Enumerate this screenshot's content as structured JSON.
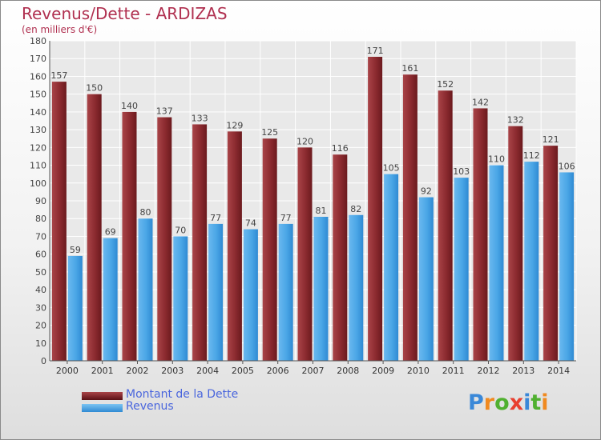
{
  "title": "Revenus/Dette - ARDIZAS",
  "subtitle": "(en milliers d'€)",
  "chart_data": {
    "type": "bar",
    "categories": [
      "2000",
      "2001",
      "2002",
      "2003",
      "2004",
      "2005",
      "2006",
      "2007",
      "2008",
      "2009",
      "2010",
      "2011",
      "2012",
      "2013",
      "2014"
    ],
    "series": [
      {
        "name": "Montant de la Dette",
        "values": [
          157,
          150,
          140,
          137,
          133,
          129,
          125,
          120,
          116,
          171,
          161,
          152,
          142,
          132,
          121
        ]
      },
      {
        "name": "Revenus",
        "values": [
          59,
          69,
          80,
          70,
          77,
          74,
          77,
          81,
          82,
          105,
          92,
          103,
          110,
          112,
          106
        ]
      }
    ],
    "ylim": [
      0,
      180
    ],
    "yticks": [
      0,
      10,
      20,
      30,
      40,
      50,
      60,
      70,
      80,
      90,
      100,
      110,
      120,
      130,
      140,
      150,
      160,
      170,
      180
    ],
    "grid": true,
    "legend_position": "bottom-left"
  },
  "colors": {
    "debt": "#7a1f25",
    "debt_light": "#a94448",
    "revenue": "#3d99df",
    "revenue_light": "#6ab8ef",
    "title": "#b03050",
    "legend_text": "#4a66dd"
  },
  "legend": {
    "debt_label": "Montant de la Dette",
    "revenue_label": "Revenus"
  },
  "logo": {
    "letters": [
      "P",
      "r",
      "o",
      "x",
      "i",
      "t",
      "i"
    ],
    "letter_colors": [
      "#3a88d8",
      "#f08a20",
      "#50b030",
      "#e84030",
      "#3a88d8",
      "#50b030",
      "#f08a20"
    ]
  }
}
